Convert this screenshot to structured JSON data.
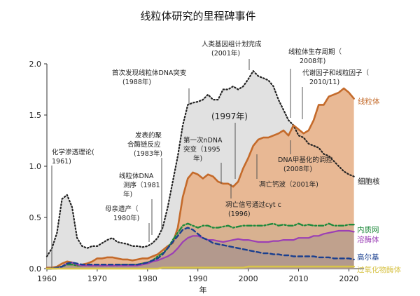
{
  "chart_data": {
    "type": "area",
    "title": "线粒体研究的里程碑事件",
    "xlabel": "年",
    "ylabel": "",
    "xlim": [
      1960,
      2023
    ],
    "ylim": [
      0,
      2.0
    ],
    "xticks": [
      1960,
      1970,
      1980,
      1990,
      2000,
      2010,
      2020
    ],
    "yticks": [
      0.0,
      0.5,
      1.0,
      1.5,
      2.0
    ],
    "x": [
      1960,
      1961,
      1962,
      1963,
      1964,
      1965,
      1966,
      1967,
      1968,
      1969,
      1970,
      1971,
      1972,
      1973,
      1974,
      1975,
      1976,
      1977,
      1978,
      1979,
      1980,
      1981,
      1982,
      1983,
      1984,
      1985,
      1986,
      1987,
      1988,
      1989,
      1990,
      1991,
      1992,
      1993,
      1994,
      1995,
      1996,
      1997,
      1998,
      1999,
      2000,
      2001,
      2002,
      2003,
      2004,
      2005,
      2006,
      2007,
      2008,
      2009,
      2010,
      2011,
      2012,
      2013,
      2014,
      2015,
      2016,
      2017,
      2018,
      2019,
      2020,
      2021
    ],
    "series": [
      {
        "name": "细胞核",
        "color": "#222222",
        "style": "dotted",
        "values": [
          0.12,
          0.2,
          0.35,
          0.68,
          0.72,
          0.6,
          0.3,
          0.22,
          0.2,
          0.22,
          0.22,
          0.25,
          0.28,
          0.3,
          0.26,
          0.25,
          0.24,
          0.22,
          0.22,
          0.21,
          0.22,
          0.25,
          0.3,
          0.4,
          0.6,
          0.85,
          1.1,
          1.4,
          1.6,
          1.62,
          1.63,
          1.65,
          1.7,
          1.65,
          1.65,
          1.75,
          1.75,
          1.78,
          1.75,
          1.78,
          1.85,
          1.93,
          1.88,
          1.86,
          1.84,
          1.78,
          1.65,
          1.55,
          1.45,
          1.4,
          1.3,
          1.28,
          1.22,
          1.2,
          1.18,
          1.12,
          1.1,
          1.05,
          1.0,
          0.95,
          0.92,
          0.9
        ]
      },
      {
        "name": "线粒体",
        "color": "#c46a2a",
        "fill": "#e8b58f",
        "values": [
          0.01,
          0.01,
          0.02,
          0.05,
          0.07,
          0.06,
          0.03,
          0.04,
          0.05,
          0.07,
          0.1,
          0.1,
          0.11,
          0.11,
          0.1,
          0.09,
          0.09,
          0.08,
          0.09,
          0.1,
          0.1,
          0.12,
          0.14,
          0.18,
          0.22,
          0.25,
          0.4,
          0.7,
          0.88,
          0.94,
          0.92,
          0.88,
          0.92,
          0.9,
          0.85,
          0.83,
          0.83,
          0.8,
          0.85,
          0.98,
          1.08,
          1.2,
          1.26,
          1.28,
          1.28,
          1.3,
          1.32,
          1.35,
          1.3,
          1.4,
          1.36,
          1.32,
          1.35,
          1.45,
          1.6,
          1.6,
          1.68,
          1.7,
          1.72,
          1.76,
          1.72,
          1.66
        ]
      },
      {
        "name": "内质网",
        "color": "#1f8a3c",
        "style": "dashdot",
        "values": [
          0.0,
          0.0,
          0.01,
          0.02,
          0.04,
          0.04,
          0.03,
          0.03,
          0.03,
          0.03,
          0.03,
          0.03,
          0.03,
          0.03,
          0.03,
          0.04,
          0.04,
          0.04,
          0.04,
          0.05,
          0.06,
          0.08,
          0.12,
          0.15,
          0.2,
          0.28,
          0.35,
          0.42,
          0.44,
          0.42,
          0.4,
          0.42,
          0.42,
          0.4,
          0.4,
          0.41,
          0.42,
          0.4,
          0.41,
          0.42,
          0.42,
          0.42,
          0.42,
          0.42,
          0.43,
          0.44,
          0.42,
          0.43,
          0.42,
          0.42,
          0.44,
          0.42,
          0.43,
          0.42,
          0.42,
          0.42,
          0.44,
          0.42,
          0.42,
          0.42,
          0.43,
          0.43
        ]
      },
      {
        "name": "溶酶体",
        "color": "#9b3fb5",
        "values": [
          0.0,
          0.0,
          0.0,
          0.02,
          0.05,
          0.06,
          0.04,
          0.03,
          0.03,
          0.03,
          0.03,
          0.03,
          0.03,
          0.03,
          0.03,
          0.03,
          0.03,
          0.03,
          0.03,
          0.04,
          0.05,
          0.07,
          0.08,
          0.1,
          0.12,
          0.15,
          0.2,
          0.26,
          0.3,
          0.32,
          0.32,
          0.3,
          0.28,
          0.28,
          0.27,
          0.26,
          0.27,
          0.28,
          0.29,
          0.28,
          0.28,
          0.27,
          0.26,
          0.26,
          0.26,
          0.27,
          0.27,
          0.28,
          0.28,
          0.28,
          0.3,
          0.3,
          0.3,
          0.32,
          0.32,
          0.34,
          0.35,
          0.36,
          0.37,
          0.37,
          0.37,
          0.36
        ]
      },
      {
        "name": "高尔基",
        "color": "#1a3f8f",
        "style": "dashed",
        "values": [
          0.0,
          0.0,
          0.01,
          0.02,
          0.05,
          0.06,
          0.05,
          0.04,
          0.04,
          0.04,
          0.04,
          0.04,
          0.04,
          0.04,
          0.04,
          0.04,
          0.04,
          0.04,
          0.04,
          0.05,
          0.06,
          0.08,
          0.1,
          0.14,
          0.2,
          0.26,
          0.32,
          0.38,
          0.4,
          0.38,
          0.34,
          0.3,
          0.28,
          0.25,
          0.24,
          0.23,
          0.22,
          0.21,
          0.2,
          0.19,
          0.18,
          0.17,
          0.16,
          0.15,
          0.15,
          0.14,
          0.14,
          0.13,
          0.13,
          0.12,
          0.12,
          0.12,
          0.12,
          0.12,
          0.11,
          0.11,
          0.11,
          0.1,
          0.1,
          0.1,
          0.1,
          0.09
        ]
      },
      {
        "name": "过氧化物酶体",
        "color": "#d8c44a",
        "values": [
          0.0,
          0.0,
          0.0,
          0.0,
          0.0,
          0.0,
          0.0,
          0.0,
          0.0,
          0.0,
          0.0,
          0.0,
          0.0,
          0.0,
          0.0,
          0.0,
          0.0,
          0.0,
          0.0,
          0.0,
          0.0,
          0.0,
          0.0,
          0.01,
          0.01,
          0.01,
          0.01,
          0.01,
          0.01,
          0.01,
          0.01,
          0.01,
          0.01,
          0.01,
          0.01,
          0.01,
          0.01,
          0.01,
          0.01,
          0.01,
          0.02,
          0.02,
          0.02,
          0.02,
          0.02,
          0.02,
          0.02,
          0.02,
          0.02,
          0.02,
          0.02,
          0.02,
          0.02,
          0.02,
          0.02,
          0.02,
          0.02,
          0.02,
          0.02,
          0.02,
          0.02,
          0.02
        ]
      }
    ],
    "annotations": [
      {
        "text": "化学渗透理论(",
        "text2": "1961)",
        "x": 1961
      },
      {
        "text": "母亲遗产（",
        "text2": "1980年)",
        "x": 1980
      },
      {
        "text": "线粒体DNA",
        "text2": "测序（1981",
        "text3": "年)",
        "x": 1981
      },
      {
        "text": "发表的聚",
        "text2": "合酶链反应",
        "text3": "(1983年)",
        "x": 1983
      },
      {
        "text": "首次发现线粒体DNA突变",
        "text2": "(1988年)",
        "x": 1988
      },
      {
        "text": "第一次nDNA",
        "text2": "突变（1995",
        "text3": "年)",
        "x": 1995
      },
      {
        "text": "(1997年)",
        "x": 1997
      },
      {
        "text": "凋亡信号通过cyt c",
        "text2": "(1996)",
        "x": 1996
      },
      {
        "text": "人类基因组计划完成",
        "text2": "(2001年)",
        "x": 2001
      },
      {
        "text": "凋亡钙波（2001年)",
        "x": 2001
      },
      {
        "text": "线粒体生存周期（",
        "text2": "2008年)",
        "x": 2008
      },
      {
        "text": "DNA甲基化的调控",
        "text2": "(2008年)",
        "x": 2008
      },
      {
        "text": "代谢因子和线粒因子（",
        "text2": "2010/11)",
        "x": 2010
      }
    ]
  }
}
